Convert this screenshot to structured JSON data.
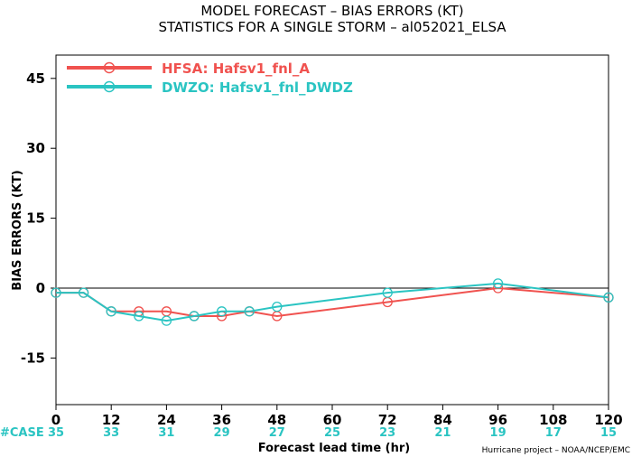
{
  "title": "MODEL FORECAST – BIAS ERRORS (KT)",
  "subtitle": "STATISTICS FOR A SINGLE STORM – al052021_ELSA",
  "credit": "Hurricane project – NOAA/NCEP/EMC",
  "case_label": "#CASE",
  "colors": {
    "hfsa": "#f0524f",
    "dwzo": "#2ac4c2",
    "count": "#2ac4c2"
  },
  "chart_data": {
    "type": "line",
    "xlabel": "Forecast lead time (hr)",
    "ylabel": "BIAS ERRORS (KT)",
    "xlim": [
      0,
      120
    ],
    "ylim": [
      -25,
      50
    ],
    "xticks": [
      "0",
      "12",
      "24",
      "36",
      "48",
      "60",
      "72",
      "84",
      "96",
      "108",
      "120"
    ],
    "yticks": [
      "45",
      "30",
      "15",
      "0",
      "-15"
    ],
    "case_counts": [
      "35",
      "33",
      "31",
      "29",
      "27",
      "25",
      "23",
      "21",
      "19",
      "17",
      "15"
    ],
    "legend_position": "top-left",
    "series": [
      {
        "name": "HFSA: Hafsv1_fnl_A",
        "x": [
          0,
          6,
          12,
          18,
          24,
          30,
          36,
          42,
          48,
          72,
          96,
          120
        ],
        "y": [
          -1,
          -1,
          -5,
          -5,
          -5,
          -6,
          -6,
          -5,
          -6,
          -3,
          0,
          -2
        ]
      },
      {
        "name": "DWZO: Hafsv1_fnl_DWDZ",
        "x": [
          0,
          6,
          12,
          18,
          24,
          30,
          36,
          42,
          48,
          72,
          96,
          120
        ],
        "y": [
          -1,
          -1,
          -5,
          -6,
          -7,
          -6,
          -5,
          -5,
          -4,
          -1,
          1,
          -2
        ]
      }
    ]
  }
}
